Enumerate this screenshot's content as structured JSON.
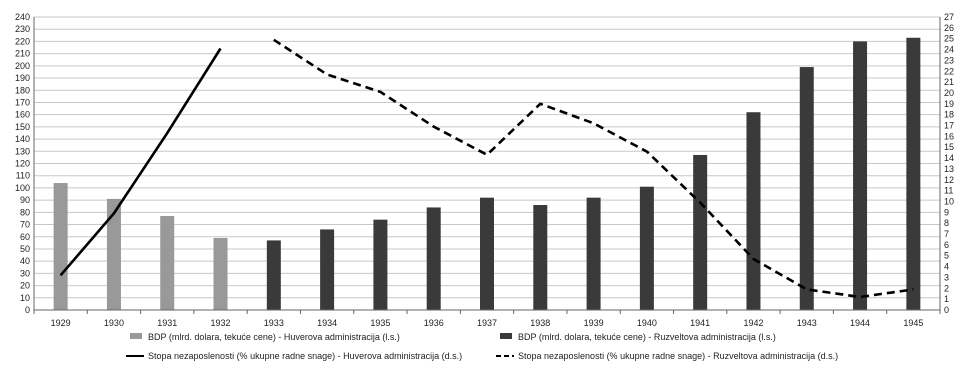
{
  "chart_data": {
    "type": "bar",
    "categories": [
      "1929",
      "1930",
      "1931",
      "1932",
      "1933",
      "1934",
      "1935",
      "1936",
      "1937",
      "1938",
      "1939",
      "1940",
      "1941",
      "1942",
      "1943",
      "1944",
      "1945"
    ],
    "title": "",
    "xlabel": "",
    "ylabel": "",
    "ylim": [
      0,
      240
    ],
    "y2lim": [
      0,
      27
    ],
    "left_ticks": [
      "0",
      "10",
      "20",
      "30",
      "40",
      "50",
      "60",
      "70",
      "80",
      "90",
      "100",
      "110",
      "120",
      "130",
      "140",
      "150",
      "160",
      "170",
      "180",
      "190",
      "200",
      "210",
      "220",
      "230",
      "240"
    ],
    "right_ticks": [
      "0",
      "1",
      "2",
      "3",
      "4",
      "5",
      "6",
      "7",
      "8",
      "9",
      "10",
      "11",
      "12",
      "13",
      "14",
      "15",
      "16",
      "17",
      "18",
      "19",
      "20",
      "21",
      "22",
      "23",
      "24",
      "25",
      "26",
      "27"
    ],
    "grid": true,
    "legend_position": "bottom",
    "series": [
      {
        "name": "BDP  (mlrd. dolara, tekuće cene)  - Huverova administracija (l.s.)",
        "kind": "bar",
        "axis": "left",
        "color": "#999999",
        "values": [
          104,
          91,
          77,
          59,
          null,
          null,
          null,
          null,
          null,
          null,
          null,
          null,
          null,
          null,
          null,
          null,
          null
        ]
      },
      {
        "name": "BDP  (mlrd. dolara, tekuće cene)  - Ruzveltova administracija (l.s.)",
        "kind": "bar",
        "axis": "left",
        "color": "#3a3a3a",
        "values": [
          null,
          null,
          null,
          null,
          57,
          66,
          74,
          84,
          92,
          86,
          92,
          101,
          127,
          162,
          199,
          220,
          223
        ]
      },
      {
        "name": "Stopa nezaposlenosti  (% ukupne radne snage)   - Huverova administracija (d.s.)",
        "kind": "line",
        "style": "solid",
        "axis": "right",
        "color": "#000000",
        "values": [
          3.2,
          8.9,
          16.3,
          24.1,
          null,
          null,
          null,
          null,
          null,
          null,
          null,
          null,
          null,
          null,
          null,
          null,
          null
        ]
      },
      {
        "name": "Stopa nezaposlenosti  (% ukupne radne snage)   - Ruzveltova administracija (d.s.)",
        "kind": "line",
        "style": "dashed",
        "axis": "right",
        "color": "#000000",
        "values": [
          null,
          null,
          null,
          null,
          24.9,
          21.7,
          20.1,
          16.9,
          14.3,
          19.0,
          17.2,
          14.6,
          9.9,
          4.7,
          1.9,
          1.2,
          1.9
        ]
      }
    ]
  }
}
